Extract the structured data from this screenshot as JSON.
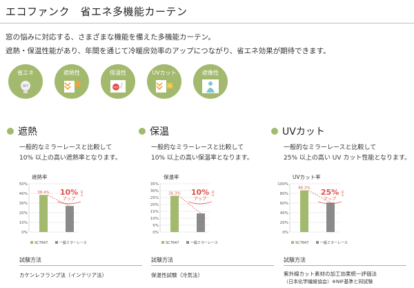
{
  "page": {
    "title": "エコファンク　省エネ多機能カーテン",
    "intro_line1": "窓の悩みに対応する、さまざまな機能を備えた多機能カーテン。",
    "intro_line2": "遮熱・保温性能があり、年間を通じて冷暖房効率のアップにつながり、省エネ効果が期待できます。"
  },
  "features": [
    {
      "label": "省エネ",
      "icon": "bulb-off-icon"
    },
    {
      "label": "遮熱性",
      "icon": "heat-shield-icon"
    },
    {
      "label": "保温性",
      "icon": "heat-keep-icon"
    },
    {
      "label": "UVカット",
      "icon": "uv-cut-icon"
    },
    {
      "label": "遮像性",
      "icon": "privacy-icon"
    }
  ],
  "sections": [
    {
      "heading": "遮熱",
      "desc_line1": "一般的なミラーレースと比較して",
      "desc_line2": "10% 以上の高い遮熱率となります。",
      "rate_label": "遮熱率",
      "badge_value": "10%",
      "badge_suffix": "以上",
      "badge_sub": "アップ",
      "method_title": "試験方法",
      "method_line1": "カケンレフランプ法（インテリア法）",
      "method_line2": ""
    },
    {
      "heading": "保温",
      "desc_line1": "一般的なミラーレースと比較して",
      "desc_line2": "10% 以上の高い保温率となります。",
      "rate_label": "保温率",
      "badge_value": "10%",
      "badge_suffix": "以上",
      "badge_sub": "アップ",
      "method_title": "試験方法",
      "method_line1": "保温性試験（冷気法）",
      "method_line2": ""
    },
    {
      "heading": "UVカット",
      "desc_line1": "一般的なミラーレースと比較して",
      "desc_line2": "25% 以上の高い UV カット性能となります。",
      "rate_label": "UVカット率",
      "badge_value": "25%",
      "badge_suffix": "以上",
      "badge_sub": "アップ",
      "method_title": "試験方法",
      "method_line1": "紫外線カット素材の加工効果統一評価法",
      "method_line2": "（日本化学繊維協会）※NIF基準と同試験"
    }
  ],
  "chart_data": [
    {
      "type": "bar",
      "title": "遮熱率",
      "categories": [
        "SC7647",
        "一般ミラーレース"
      ],
      "values": [
        38.4,
        27
      ],
      "value_labels": [
        "38.4%",
        ""
      ],
      "yticks": [
        "50%",
        "40%",
        "30%",
        "20%",
        "10%",
        "0%"
      ],
      "ylim": [
        0,
        50
      ],
      "colors": [
        "#a3b96d",
        "#8a8a8a"
      ]
    },
    {
      "type": "bar",
      "title": "保温率",
      "categories": [
        "SC7647",
        "一般ミラーレース"
      ],
      "values": [
        26.3,
        13.5
      ],
      "value_labels": [
        "26.3%",
        ""
      ],
      "yticks": [
        "35%",
        "30%",
        "25%",
        "20%",
        "15%",
        "10%",
        "5%",
        "0%"
      ],
      "ylim": [
        0,
        35
      ],
      "colors": [
        "#a3b96d",
        "#8a8a8a"
      ]
    },
    {
      "type": "bar",
      "title": "UVカット率",
      "categories": [
        "SC7647",
        "一般ミラーレース"
      ],
      "values": [
        86.3,
        61
      ],
      "value_labels": [
        "86.3%",
        ""
      ],
      "yticks": [
        "100%",
        "80%",
        "60%",
        "40%",
        "20%",
        "0%"
      ],
      "ylim": [
        0,
        100
      ],
      "colors": [
        "#a3b96d",
        "#8a8a8a"
      ]
    }
  ],
  "colors": {
    "accent": "#a3b96d",
    "accent_dark": "#7f9a45",
    "badge": "#e0524a",
    "bar_gray": "#8a8a8a"
  }
}
